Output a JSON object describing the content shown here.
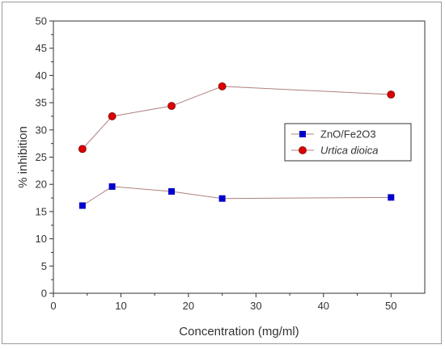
{
  "chart_data": {
    "type": "line",
    "xlabel": "Concentration (mg/ml)",
    "ylabel": "% inhibition",
    "xlim": [
      0,
      55
    ],
    "ylim": [
      0,
      50
    ],
    "xticks": [
      "0",
      "10",
      "20",
      "30",
      "40",
      "50"
    ],
    "yticks": [
      "0",
      "5",
      "10",
      "15",
      "20",
      "25",
      "30",
      "35",
      "40",
      "45",
      "50"
    ],
    "grid": false,
    "legend_position": "right-middle",
    "series": [
      {
        "name": "ZnO/Fe2O3",
        "marker": "square",
        "color": "#0000cc",
        "x": [
          4.3,
          8.7,
          17.5,
          25,
          50
        ],
        "y": [
          16.1,
          19.6,
          18.7,
          17.4,
          17.6
        ]
      },
      {
        "name": "Urtica dioica",
        "marker": "circle",
        "color": "#dd0000",
        "x": [
          4.3,
          8.7,
          17.5,
          25,
          50
        ],
        "y": [
          26.5,
          32.5,
          34.4,
          38.0,
          36.5
        ]
      }
    ],
    "line_color": "#b08080"
  }
}
